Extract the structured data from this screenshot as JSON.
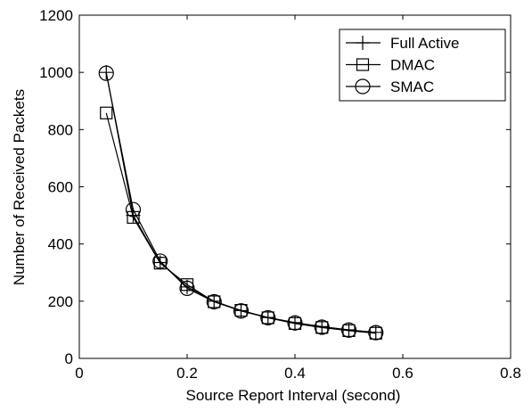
{
  "chart_data": {
    "type": "line",
    "xlabel": "Source Report Interval (second)",
    "ylabel": "Number of Received Packets",
    "xlim": [
      0,
      0.8
    ],
    "ylim": [
      0,
      1200
    ],
    "xticks": [
      "0",
      "0.2",
      "0.4",
      "0.6",
      "0.8"
    ],
    "yticks": [
      "0",
      "200",
      "400",
      "600",
      "800",
      "1000",
      "1200"
    ],
    "grid": false,
    "legend_position": "top-right",
    "x": [
      0.05,
      0.1,
      0.15,
      0.2,
      0.25,
      0.3,
      0.35,
      0.4,
      0.45,
      0.5,
      0.55
    ],
    "series": [
      {
        "name": "Full Active",
        "marker": "plus",
        "values": [
          1000,
          500,
          335,
          250,
          200,
          167,
          143,
          125,
          111,
          100,
          91
        ]
      },
      {
        "name": "DMAC",
        "marker": "square",
        "values": [
          858,
          493,
          333,
          258,
          198,
          168,
          142,
          122,
          108,
          97,
          88
        ]
      },
      {
        "name": "SMAC",
        "marker": "circle",
        "values": [
          997,
          520,
          340,
          245,
          198,
          166,
          142,
          124,
          109,
          99,
          90
        ]
      }
    ]
  }
}
